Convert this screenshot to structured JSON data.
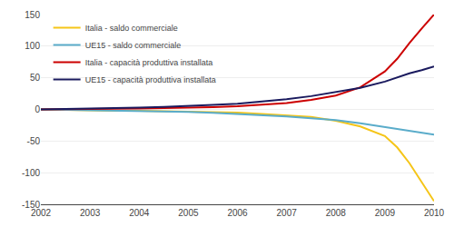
{
  "chart_data": {
    "type": "line",
    "x": [
      2002,
      2002.5,
      2003,
      2003.5,
      2004,
      2004.5,
      2005,
      2005.5,
      2006,
      2006.5,
      2007,
      2007.5,
      2008,
      2008.5,
      2009,
      2009.25,
      2009.5,
      2009.75,
      2010
    ],
    "series": [
      {
        "name": "Italia - saldo commerciale",
        "color": "#f5c518",
        "values": [
          0,
          -1,
          -1.5,
          -2,
          -2,
          -2.5,
          -3,
          -4,
          -5,
          -7,
          -9,
          -12,
          -18,
          -27,
          -42,
          -60,
          -85,
          -115,
          -145
        ]
      },
      {
        "name": "UE15 - saldo commerciale",
        "color": "#5aacca",
        "values": [
          0,
          -0.5,
          -1,
          -1.5,
          -2,
          -3,
          -4,
          -5.5,
          -7,
          -9,
          -11,
          -14,
          -17,
          -22,
          -28,
          -31,
          -34,
          -37,
          -40
        ]
      },
      {
        "name": "Italia - capacità produttiva installata",
        "color": "#cc0000",
        "values": [
          0,
          0,
          0.5,
          1,
          1.5,
          2,
          2.5,
          3.5,
          5,
          7,
          10,
          15,
          22,
          35,
          60,
          80,
          105,
          128,
          150
        ]
      },
      {
        "name": "UE15 - capacità produttiva installata",
        "color": "#1a1a5e",
        "values": [
          0,
          0.5,
          1,
          2,
          3,
          4,
          5,
          7,
          9,
          12,
          16,
          21,
          27,
          34,
          44,
          51,
          57,
          62,
          68
        ]
      }
    ],
    "xlim": [
      2002,
      2010
    ],
    "xticks": [
      2002,
      2003,
      2004,
      2005,
      2006,
      2007,
      2008,
      2009,
      2010
    ],
    "ylim": [
      -150,
      150
    ],
    "yticks": [
      -150,
      -100,
      -50,
      0,
      50,
      100,
      150
    ],
    "grid": true,
    "legend": "upper left"
  }
}
